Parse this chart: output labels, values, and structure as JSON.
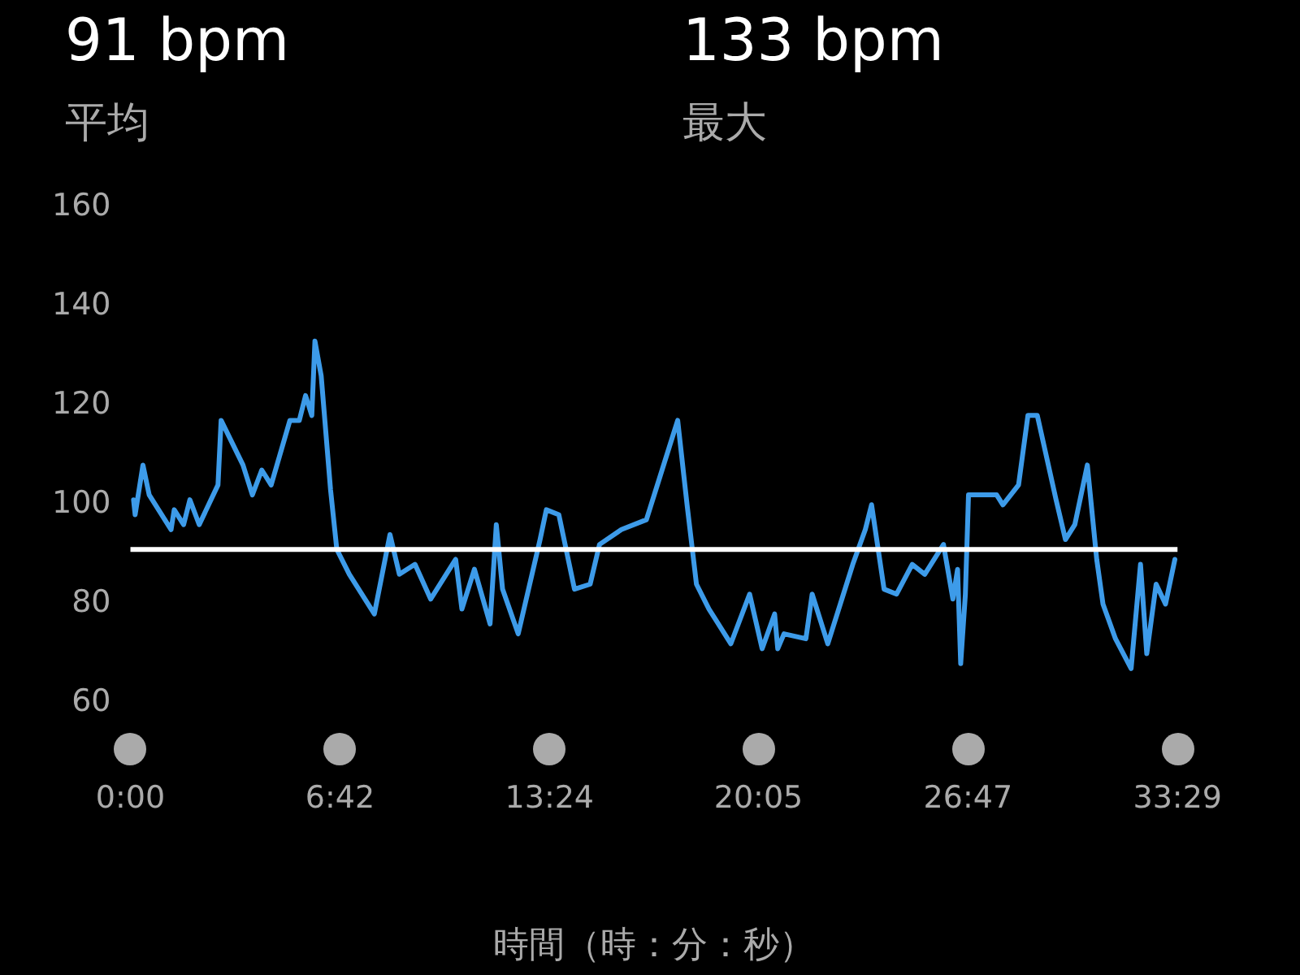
{
  "chart_data": {
    "type": "line",
    "annotations": [
      "91 bpm",
      "133 bpm",
      "平均",
      "最大"
    ],
    "xlabel": "時間（時：分：秒）",
    "x": [
      0.1,
      0.15,
      0.4,
      0.6,
      1.3,
      1.4,
      1.7,
      1.9,
      2.2,
      2.8,
      2.9,
      3.6,
      3.9,
      4.2,
      4.5,
      5.1,
      5.4,
      5.6,
      5.8,
      5.9,
      6.1,
      6.4,
      6.6,
      7.0,
      7.8,
      8.3,
      8.6,
      9.1,
      9.6,
      10.4,
      10.6,
      11.0,
      11.5,
      11.7,
      11.9,
      12.4,
      13.1,
      13.3,
      13.7,
      14.2,
      14.7,
      15.0,
      15.7,
      16.5,
      16.9,
      17.5,
      17.8,
      18.1,
      18.5,
      19.2,
      19.8,
      20.2,
      20.6,
      20.7,
      20.9,
      21.6,
      21.8,
      22.3,
      22.8,
      23.1,
      23.5,
      23.7,
      24.1,
      24.5,
      25.0,
      25.4,
      26.0,
      26.3,
      26.45,
      26.55,
      26.7,
      26.8,
      27.7,
      27.9,
      28.4,
      28.7,
      29.0,
      29.6,
      29.9,
      30.2,
      30.6,
      30.9,
      31.1,
      31.5,
      32.0,
      32.3,
      32.5,
      32.8,
      33.1,
      33.4
    ],
    "series": [
      {
        "color": "#3d9be9",
        "values": [
          101,
          98,
          108,
          102,
          95,
          99,
          96,
          101,
          96,
          104,
          117,
          108,
          102,
          107,
          104,
          117,
          117,
          122,
          118,
          133,
          126,
          103,
          91,
          86,
          78,
          94,
          86,
          88,
          81,
          89,
          79,
          87,
          76,
          96,
          83,
          74,
          93,
          99,
          98,
          83,
          84,
          92,
          95,
          97,
          105,
          117,
          100,
          84,
          79,
          72,
          82,
          71,
          78,
          71,
          74,
          73,
          82,
          72,
          82,
          88,
          95,
          100,
          83,
          82,
          88,
          86,
          92,
          81,
          87,
          68,
          82,
          102,
          102,
          100,
          104,
          118,
          118,
          101,
          93,
          96,
          108,
          89,
          80,
          73,
          67,
          88,
          70,
          84,
          80,
          89
        ]
      }
    ],
    "xlim": [
      0,
      33.4833
    ],
    "xticks": [
      {
        "value": 0,
        "label": "0:00"
      },
      {
        "value": 6.7,
        "label": "6:42"
      },
      {
        "value": 13.4,
        "label": "13:24"
      },
      {
        "value": 20.0833,
        "label": "20:05"
      },
      {
        "value": 26.7833,
        "label": "26:47"
      },
      {
        "value": 33.4833,
        "label": "33:29"
      }
    ],
    "ylim": [
      60,
      160
    ],
    "yticks": [
      60,
      80,
      100,
      120,
      140,
      160
    ],
    "ref_lines": [
      {
        "axis": "y",
        "value": 91,
        "color": "#ffffff"
      }
    ],
    "grid": false,
    "legend": false,
    "marker": "none",
    "line_style": "solid"
  }
}
